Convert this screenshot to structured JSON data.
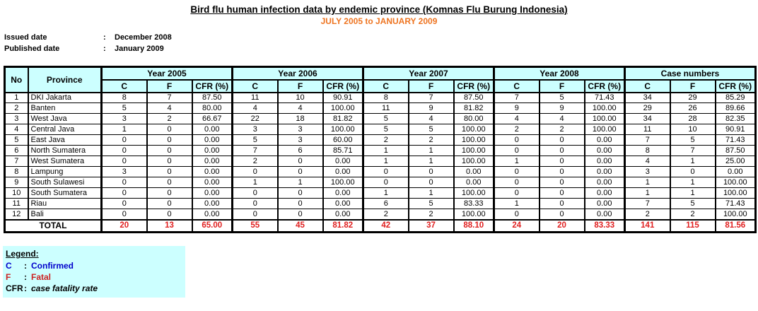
{
  "header": {
    "title": "Bird flu human infection data by endemic province (Komnas Flu Burung Indonesia)",
    "subtitle": "JULY 2005 to JANUARY 2009",
    "issued": {
      "label": "Issued date",
      "colon": ":",
      "value": "December 2008"
    },
    "published": {
      "label": "Published date",
      "colon": ":",
      "value": "January 2009"
    }
  },
  "table": {
    "corner": {
      "no": "No",
      "province": "Province"
    },
    "groups": [
      "Year 2005",
      "Year 2006",
      "Year 2007",
      "Year 2008",
      "Case numbers"
    ],
    "sub_headers": [
      "C",
      "F",
      "CFR (%)"
    ],
    "rows": [
      {
        "no": "1",
        "province": "DKI Jakarta",
        "values": [
          "8",
          "7",
          "87.50",
          "11",
          "10",
          "90.91",
          "8",
          "7",
          "87.50",
          "7",
          "5",
          "71.43",
          "34",
          "29",
          "85.29"
        ]
      },
      {
        "no": "2",
        "province": "Banten",
        "values": [
          "5",
          "4",
          "80.00",
          "4",
          "4",
          "100.00",
          "11",
          "9",
          "81.82",
          "9",
          "9",
          "100.00",
          "29",
          "26",
          "89.66"
        ]
      },
      {
        "no": "3",
        "province": "West Java",
        "values": [
          "3",
          "2",
          "66.67",
          "22",
          "18",
          "81.82",
          "5",
          "4",
          "80.00",
          "4",
          "4",
          "100.00",
          "34",
          "28",
          "82.35"
        ]
      },
      {
        "no": "4",
        "province": "Central Java",
        "values": [
          "1",
          "0",
          "0.00",
          "3",
          "3",
          "100.00",
          "5",
          "5",
          "100.00",
          "2",
          "2",
          "100.00",
          "11",
          "10",
          "90.91"
        ]
      },
      {
        "no": "5",
        "province": "East Java",
        "values": [
          "0",
          "0",
          "0.00",
          "5",
          "3",
          "60.00",
          "2",
          "2",
          "100.00",
          "0",
          "0",
          "0.00",
          "7",
          "5",
          "71.43"
        ]
      },
      {
        "no": "6",
        "province": "North Sumatera",
        "values": [
          "0",
          "0",
          "0.00",
          "7",
          "6",
          "85.71",
          "1",
          "1",
          "100.00",
          "0",
          "0",
          "0.00",
          "8",
          "7",
          "87.50"
        ]
      },
      {
        "no": "7",
        "province": "West Sumatera",
        "values": [
          "0",
          "0",
          "0.00",
          "2",
          "0",
          "0.00",
          "1",
          "1",
          "100.00",
          "1",
          "0",
          "0.00",
          "4",
          "1",
          "25.00"
        ]
      },
      {
        "no": "8",
        "province": "Lampung",
        "values": [
          "3",
          "0",
          "0.00",
          "0",
          "0",
          "0.00",
          "0",
          "0",
          "0.00",
          "0",
          "0",
          "0.00",
          "3",
          "0",
          "0.00"
        ]
      },
      {
        "no": "9",
        "province": "South Sulawesi",
        "values": [
          "0",
          "0",
          "0.00",
          "1",
          "1",
          "100.00",
          "0",
          "0",
          "0.00",
          "0",
          "0",
          "0.00",
          "1",
          "1",
          "100.00"
        ]
      },
      {
        "no": "10",
        "province": "South Sumatera",
        "values": [
          "0",
          "0",
          "0.00",
          "0",
          "0",
          "0.00",
          "1",
          "1",
          "100.00",
          "0",
          "0",
          "0.00",
          "1",
          "1",
          "100.00"
        ]
      },
      {
        "no": "11",
        "province": "Riau",
        "values": [
          "0",
          "0",
          "0.00",
          "0",
          "0",
          "0.00",
          "6",
          "5",
          "83.33",
          "1",
          "0",
          "0.00",
          "7",
          "5",
          "71.43"
        ]
      },
      {
        "no": "12",
        "province": "Bali",
        "values": [
          "0",
          "0",
          "0.00",
          "0",
          "0",
          "0.00",
          "2",
          "2",
          "100.00",
          "0",
          "0",
          "0.00",
          "2",
          "2",
          "100.00"
        ]
      }
    ],
    "total": {
      "label": "TOTAL",
      "values": [
        "20",
        "13",
        "65.00",
        "55",
        "45",
        "81.82",
        "42",
        "37",
        "88.10",
        "24",
        "20",
        "83.33",
        "141",
        "115",
        "81.56"
      ]
    }
  },
  "legend": {
    "heading": "Legend:",
    "entries": [
      {
        "term": "C",
        "colon": ":",
        "desc": "Confirmed",
        "color": "#0000CC",
        "italic": false
      },
      {
        "term": "F",
        "colon": ":",
        "desc": "Fatal",
        "color": "#CC2222",
        "italic": false
      },
      {
        "term": "CFR",
        "colon": ":",
        "desc": "case fatality rate",
        "color": "#000000",
        "italic": true
      }
    ]
  },
  "colors": {
    "header_bg": "#CCFFFF",
    "subtitle_orange": "#EE7420",
    "total_red": "#E02020",
    "legend_bg": "#CCFFFF"
  }
}
